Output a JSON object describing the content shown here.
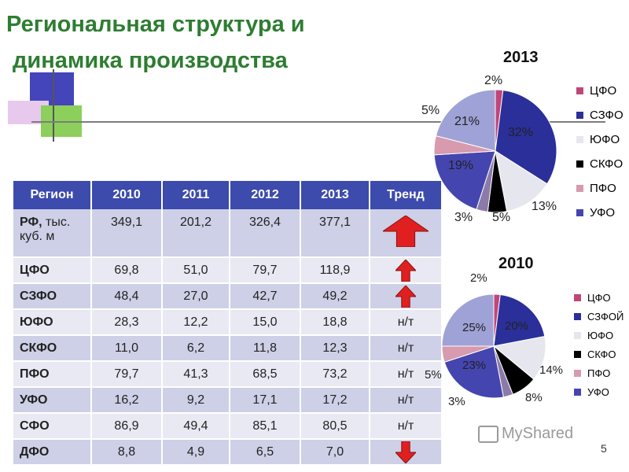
{
  "slide": {
    "title_line1": "Региональная структура и",
    "title_line2": "динамика производства",
    "page_number": "5",
    "watermark": "MyShared"
  },
  "table": {
    "headers": [
      "Регион",
      "2010",
      "2011",
      "2012",
      "2013",
      "Тренд"
    ],
    "rows": [
      {
        "region": "РФ,",
        "unit": " тыс. куб. м",
        "values": [
          "349,1",
          "201,2",
          "326,4",
          "377,1"
        ],
        "trend": "",
        "arrow": "up-large"
      },
      {
        "region": "ЦФО",
        "unit": "",
        "values": [
          "69,8",
          "51,0",
          "79,7",
          "118,9"
        ],
        "trend": "",
        "arrow": "up"
      },
      {
        "region": "СЗФО",
        "unit": "",
        "values": [
          "48,4",
          "27,0",
          "42,7",
          "49,2"
        ],
        "trend": "",
        "arrow": "up"
      },
      {
        "region": "ЮФО",
        "unit": "",
        "values": [
          "28,3",
          "12,2",
          "15,0",
          "18,8"
        ],
        "trend": "н/т",
        "arrow": ""
      },
      {
        "region": "СКФО",
        "unit": "",
        "values": [
          "11,0",
          "6,2",
          "11,8",
          "12,3"
        ],
        "trend": "н/т",
        "arrow": ""
      },
      {
        "region": "ПФО",
        "unit": "",
        "values": [
          "79,7",
          "41,3",
          "68,5",
          "73,2"
        ],
        "trend": "н/т",
        "arrow": ""
      },
      {
        "region": "УФО",
        "unit": "",
        "values": [
          "16,2",
          "9,2",
          "17,1",
          "17,2"
        ],
        "trend": "н/т",
        "arrow": ""
      },
      {
        "region": "СФО",
        "unit": "",
        "values": [
          "86,9",
          "49,4",
          "85,1",
          "80,5"
        ],
        "trend": "н/т",
        "arrow": ""
      },
      {
        "region": "ДФО",
        "unit": "",
        "values": [
          "8,8",
          "4,9",
          "6,5",
          "7,0"
        ],
        "trend": "",
        "arrow": "down"
      }
    ]
  },
  "chart_data": [
    {
      "type": "pie",
      "title": "2013",
      "legend": [
        "ЦФО",
        "СЗФО",
        "ЮФО",
        "СКФО",
        "ПФО",
        "УФО"
      ],
      "slices": [
        {
          "label": "2%",
          "value": 2,
          "color": "#c0467a"
        },
        {
          "label": "32%",
          "value": 32,
          "color": "#2b2f9a"
        },
        {
          "label": "13%",
          "value": 13,
          "color": "#e6e6ee"
        },
        {
          "label": "5%",
          "value": 5,
          "color": "#000000"
        },
        {
          "label": "3%",
          "value": 3,
          "color": "#8c7aa8"
        },
        {
          "label": "19%",
          "value": 19,
          "color": "#4545b0"
        },
        {
          "label": "5%",
          "value": 5,
          "color": "#d79aae"
        },
        {
          "label": "21%",
          "value": 21,
          "color": "#9ea2d6"
        }
      ],
      "legend_colors": [
        "#c0467a",
        "#2b2f9a",
        "#e6e6ee",
        "#000000",
        "#d79aae",
        "#4545b0"
      ]
    },
    {
      "type": "pie",
      "title": "2010",
      "legend": [
        "ЦФО",
        "СЗФОЙ",
        "ЮФО",
        "СКФО",
        "ПФО",
        "УФО"
      ],
      "slices": [
        {
          "label": "2%",
          "value": 2,
          "color": "#c0467a"
        },
        {
          "label": "20%",
          "value": 20,
          "color": "#2b2f9a"
        },
        {
          "label": "14%",
          "value": 14,
          "color": "#e6e6ee"
        },
        {
          "label": "8%",
          "value": 8,
          "color": "#000000"
        },
        {
          "label": "3%",
          "value": 3,
          "color": "#8c7aa8"
        },
        {
          "label": "23%",
          "value": 23,
          "color": "#4545b0"
        },
        {
          "label": "5%",
          "value": 5,
          "color": "#d79aae"
        },
        {
          "label": "25%",
          "value": 25,
          "color": "#9ea2d6"
        }
      ],
      "legend_colors": [
        "#c0467a",
        "#2b2f9a",
        "#e6e6ee",
        "#000000",
        "#d79aae",
        "#4545b0"
      ]
    }
  ]
}
